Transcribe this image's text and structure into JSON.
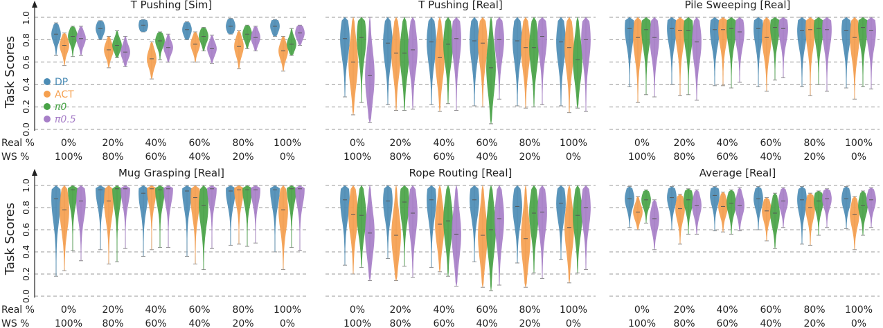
{
  "figure": {
    "ylabel": "Task Scores",
    "yticks": [
      "0.0",
      "0.2",
      "0.4",
      "0.6",
      "0.8",
      "1.0"
    ],
    "row_labels": [
      "Real %",
      "WS %"
    ],
    "categories": [
      "0%",
      "20%",
      "40%",
      "60%",
      "80%",
      "100%"
    ],
    "categories_ws": [
      "100%",
      "80%",
      "60%",
      "40%",
      "20%",
      "0%"
    ],
    "legend": [
      {
        "label": "DP",
        "color": "#4c8cb5"
      },
      {
        "label": "ACT",
        "color": "#f5a04f"
      },
      {
        "label": "π0",
        "color": "#49a347"
      },
      {
        "label": "π0.5",
        "color": "#a77fc8"
      }
    ]
  },
  "chart_data": [
    {
      "type": "violin",
      "title": "T Pushing [Sim]",
      "ylim": [
        0,
        1
      ],
      "grid": true,
      "x": [
        "0%",
        "20%",
        "40%",
        "60%",
        "80%",
        "100%"
      ],
      "series": [
        {
          "name": "DP",
          "medians": [
            0.85,
            0.9,
            0.93,
            0.89,
            0.92,
            0.92
          ],
          "mins": [
            0.66,
            0.8,
            0.87,
            0.8,
            0.85,
            0.83
          ],
          "maxs": [
            0.95,
            0.97,
            0.98,
            0.96,
            0.99,
            0.98
          ]
        },
        {
          "name": "ACT",
          "medians": [
            0.75,
            0.71,
            0.63,
            0.76,
            0.74,
            0.7
          ],
          "mins": [
            0.57,
            0.55,
            0.45,
            0.6,
            0.54,
            0.52
          ],
          "maxs": [
            0.86,
            0.83,
            0.78,
            0.87,
            0.88,
            0.83
          ]
        },
        {
          "name": "π0",
          "medians": [
            0.83,
            0.75,
            0.79,
            0.83,
            0.85,
            0.76
          ],
          "mins": [
            0.65,
            0.64,
            0.62,
            0.7,
            0.72,
            0.66
          ],
          "maxs": [
            0.92,
            0.88,
            0.87,
            0.91,
            0.93,
            0.9
          ]
        },
        {
          "name": "π0.5",
          "medians": [
            0.81,
            0.69,
            0.73,
            0.72,
            0.82,
            0.86
          ],
          "mins": [
            0.66,
            0.56,
            0.6,
            0.59,
            0.7,
            0.75
          ],
          "maxs": [
            0.92,
            0.83,
            0.85,
            0.84,
            0.92,
            0.93
          ]
        }
      ]
    },
    {
      "type": "violin",
      "title": "T Pushing [Real]",
      "ylim": [
        0,
        1
      ],
      "grid": true,
      "x": [
        "0%",
        "20%",
        "40%",
        "60%",
        "80%",
        "100%"
      ],
      "series": [
        {
          "name": "DP",
          "medians": [
            0.81,
            0.77,
            0.78,
            0.79,
            0.79,
            0.78
          ],
          "mins": [
            0.29,
            0.22,
            0.22,
            0.21,
            0.21,
            0.21
          ],
          "maxs": [
            1.0,
            1.0,
            1.0,
            1.0,
            1.0,
            1.0
          ]
        },
        {
          "name": "ACT",
          "medians": [
            0.6,
            0.68,
            0.64,
            0.77,
            0.73,
            0.73
          ],
          "mins": [
            0.13,
            0.17,
            0.16,
            0.2,
            0.19,
            0.15
          ],
          "maxs": [
            1.0,
            1.0,
            1.0,
            1.0,
            1.0,
            1.0
          ]
        },
        {
          "name": "π0",
          "medians": [
            0.82,
            0.68,
            0.76,
            0.55,
            0.73,
            0.62
          ],
          "mins": [
            0.24,
            0.17,
            0.23,
            0.05,
            0.2,
            0.19
          ],
          "maxs": [
            1.0,
            1.0,
            1.0,
            1.0,
            1.0,
            1.0
          ]
        },
        {
          "name": "π0.5",
          "medians": [
            0.48,
            0.71,
            0.81,
            0.8,
            0.83,
            0.8
          ],
          "mins": [
            0.06,
            0.18,
            0.17,
            0.27,
            0.22,
            0.16
          ],
          "maxs": [
            1.0,
            1.0,
            1.0,
            1.0,
            1.0,
            1.0
          ]
        }
      ]
    },
    {
      "type": "violin",
      "title": "Pile Sweeping [Real]",
      "ylim": [
        0,
        1
      ],
      "grid": true,
      "x": [
        "0%",
        "20%",
        "40%",
        "60%",
        "80%",
        "100%"
      ],
      "series": [
        {
          "name": "DP",
          "medians": [
            0.9,
            0.9,
            0.89,
            0.9,
            0.88,
            0.88
          ],
          "mins": [
            0.38,
            0.4,
            0.39,
            0.38,
            0.38,
            0.37
          ],
          "maxs": [
            1.0,
            1.0,
            1.0,
            1.0,
            1.0,
            1.0
          ]
        },
        {
          "name": "ACT",
          "medians": [
            0.82,
            0.88,
            0.89,
            0.82,
            0.89,
            0.82
          ],
          "mins": [
            0.24,
            0.3,
            0.39,
            0.34,
            0.3,
            0.27
          ],
          "maxs": [
            1.0,
            1.0,
            1.0,
            1.0,
            1.0,
            1.0
          ]
        },
        {
          "name": "π0",
          "medians": [
            0.89,
            0.88,
            0.9,
            0.91,
            0.9,
            0.91
          ],
          "mins": [
            0.31,
            0.31,
            0.37,
            0.44,
            0.4,
            0.38
          ],
          "maxs": [
            1.0,
            1.0,
            1.0,
            1.0,
            1.0,
            1.0
          ]
        },
        {
          "name": "π0.5",
          "medians": [
            0.82,
            0.78,
            0.87,
            0.9,
            0.89,
            0.88
          ],
          "mins": [
            0.29,
            0.26,
            0.42,
            0.46,
            0.34,
            0.36
          ],
          "maxs": [
            1.0,
            1.0,
            1.0,
            1.0,
            1.0,
            1.0
          ]
        }
      ]
    },
    {
      "type": "violin",
      "title": "Mug Grasping [Real]",
      "ylim": [
        0,
        1
      ],
      "grid": true,
      "x": [
        "0%",
        "20%",
        "40%",
        "60%",
        "80%",
        "100%"
      ],
      "series": [
        {
          "name": "DP",
          "medians": [
            0.88,
            0.96,
            0.93,
            0.95,
            0.95,
            0.96
          ],
          "mins": [
            0.18,
            0.42,
            0.36,
            0.36,
            0.46,
            0.4
          ],
          "maxs": [
            1.0,
            1.0,
            1.0,
            1.0,
            1.0,
            1.0
          ]
        },
        {
          "name": "ACT",
          "medians": [
            0.78,
            0.86,
            0.97,
            0.89,
            0.96,
            0.78
          ],
          "mins": [
            0.23,
            0.29,
            0.42,
            0.29,
            0.47,
            0.24
          ],
          "maxs": [
            1.0,
            1.0,
            1.0,
            1.0,
            1.0,
            1.0
          ]
        },
        {
          "name": "π0",
          "medians": [
            0.96,
            0.97,
            0.96,
            0.82,
            0.96,
            0.97
          ],
          "mins": [
            0.41,
            0.31,
            0.44,
            0.24,
            0.45,
            0.44
          ],
          "maxs": [
            1.0,
            1.0,
            1.0,
            1.0,
            1.0,
            1.0
          ]
        },
        {
          "name": "π0.5",
          "medians": [
            0.86,
            0.97,
            0.97,
            0.97,
            0.96,
            0.97
          ],
          "mins": [
            0.32,
            0.43,
            0.44,
            0.43,
            0.48,
            0.41
          ],
          "maxs": [
            1.0,
            1.0,
            1.0,
            1.0,
            1.0,
            1.0
          ]
        }
      ]
    },
    {
      "type": "violin",
      "title": "Rope Routing [Real]",
      "ylim": [
        0,
        1
      ],
      "grid": true,
      "x": [
        "0%",
        "20%",
        "40%",
        "60%",
        "80%",
        "100%"
      ],
      "series": [
        {
          "name": "DP",
          "medians": [
            0.87,
            0.86,
            0.87,
            0.87,
            0.81,
            0.84
          ],
          "mins": [
            0.28,
            0.34,
            0.26,
            0.31,
            0.3,
            0.33
          ],
          "maxs": [
            1.0,
            1.0,
            1.0,
            1.0,
            1.0,
            1.0
          ]
        },
        {
          "name": "ACT",
          "medians": [
            0.74,
            0.55,
            0.65,
            0.55,
            0.52,
            0.62
          ],
          "mins": [
            0.2,
            0.14,
            0.22,
            0.08,
            0.08,
            0.12
          ],
          "maxs": [
            1.0,
            1.0,
            1.0,
            1.0,
            1.0,
            1.0
          ]
        },
        {
          "name": "π0",
          "medians": [
            0.73,
            0.85,
            0.68,
            0.6,
            0.75,
            0.73
          ],
          "mins": [
            0.26,
            0.27,
            0.18,
            0.05,
            0.21,
            0.21
          ],
          "maxs": [
            1.0,
            1.0,
            1.0,
            1.0,
            1.0,
            1.0
          ]
        },
        {
          "name": "π0.5",
          "medians": [
            0.57,
            0.75,
            0.56,
            0.7,
            0.76,
            0.8
          ],
          "mins": [
            0.14,
            0.17,
            0.09,
            0.1,
            0.16,
            0.24
          ],
          "maxs": [
            1.0,
            1.0,
            1.0,
            1.0,
            1.0,
            1.0
          ]
        }
      ]
    },
    {
      "type": "violin",
      "title": "Average [Real]",
      "ylim": [
        0,
        1
      ],
      "grid": true,
      "x": [
        "0%",
        "20%",
        "40%",
        "60%",
        "80%",
        "100%"
      ],
      "series": [
        {
          "name": "DP",
          "medians": [
            0.88,
            0.89,
            0.91,
            0.88,
            0.87,
            0.88
          ],
          "mins": [
            0.62,
            0.6,
            0.59,
            0.6,
            0.47,
            0.61
          ],
          "maxs": [
            0.99,
            0.99,
            0.99,
            0.99,
            0.99,
            0.99
          ]
        },
        {
          "name": "ACT",
          "medians": [
            0.76,
            0.79,
            0.81,
            0.77,
            0.8,
            0.74
          ],
          "mins": [
            0.6,
            0.47,
            0.58,
            0.5,
            0.46,
            0.42
          ],
          "maxs": [
            0.9,
            0.92,
            0.94,
            0.89,
            0.93,
            0.9
          ]
        },
        {
          "name": "π0",
          "medians": [
            0.87,
            0.87,
            0.84,
            0.75,
            0.86,
            0.82
          ],
          "mins": [
            0.66,
            0.56,
            0.56,
            0.43,
            0.55,
            0.55
          ],
          "maxs": [
            0.96,
            0.97,
            0.96,
            0.93,
            0.95,
            0.95
          ]
        },
        {
          "name": "π0.5",
          "medians": [
            0.7,
            0.82,
            0.82,
            0.86,
            0.88,
            0.87
          ],
          "mins": [
            0.42,
            0.56,
            0.59,
            0.62,
            0.62,
            0.62
          ],
          "maxs": [
            0.87,
            0.96,
            0.98,
            0.98,
            0.97,
            0.98
          ]
        }
      ]
    }
  ]
}
